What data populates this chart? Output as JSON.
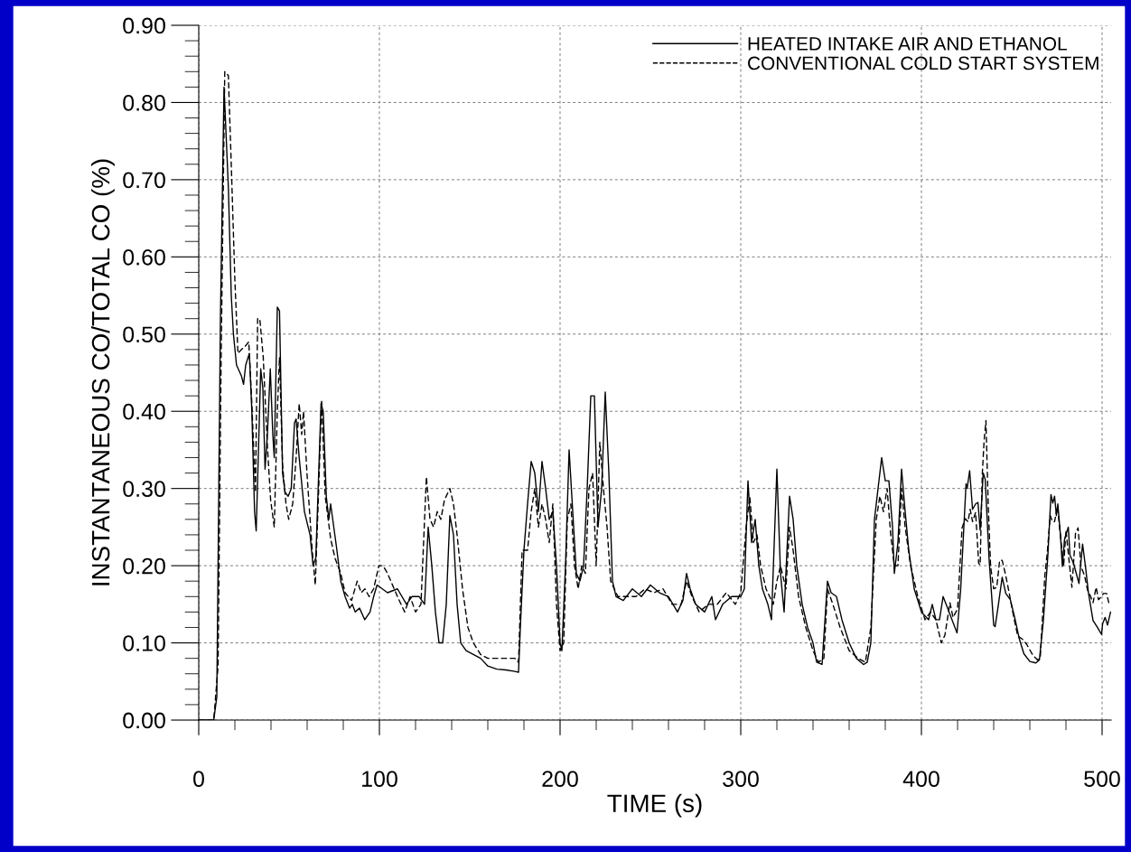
{
  "chart_data": {
    "type": "line",
    "xlabel": "TIME (s)",
    "ylabel": "INSTANTANEOUS CO/TOTAL CO (%)",
    "xlim": [
      0,
      505
    ],
    "ylim": [
      0,
      0.9
    ],
    "xticks": [
      0,
      {
        "value": 20,
        "label": null
      },
      {
        "value": 40,
        "label": null
      },
      {
        "value": 60,
        "label": null
      },
      {
        "value": 80,
        "label": null
      },
      100,
      {
        "value": 120,
        "label": null
      },
      {
        "value": 140,
        "label": null
      },
      {
        "value": 160,
        "label": null
      },
      {
        "value": 180,
        "label": null
      },
      200,
      {
        "value": 220,
        "label": null
      },
      {
        "value": 240,
        "label": null
      },
      {
        "value": 260,
        "label": null
      },
      {
        "value": 280,
        "label": null
      },
      300,
      {
        "value": 320,
        "label": null
      },
      {
        "value": 340,
        "label": null
      },
      {
        "value": 360,
        "label": null
      },
      {
        "value": 380,
        "label": null
      },
      400,
      {
        "value": 420,
        "label": null
      },
      {
        "value": 440,
        "label": null
      },
      {
        "value": 460,
        "label": null
      },
      {
        "value": 480,
        "label": null
      },
      500
    ],
    "yticks": [
      {
        "value": 0,
        "label": "0.00"
      },
      {
        "value": 0.02,
        "label": null
      },
      {
        "value": 0.04,
        "label": null
      },
      {
        "value": 0.06,
        "label": null
      },
      {
        "value": 0.08,
        "label": null
      },
      {
        "value": 0.1,
        "label": "0.10"
      },
      {
        "value": 0.12,
        "label": null
      },
      {
        "value": 0.14,
        "label": null
      },
      {
        "value": 0.16,
        "label": null
      },
      {
        "value": 0.18,
        "label": null
      },
      {
        "value": 0.2,
        "label": "0.20"
      },
      {
        "value": 0.22,
        "label": null
      },
      {
        "value": 0.24,
        "label": null
      },
      {
        "value": 0.26,
        "label": null
      },
      {
        "value": 0.28,
        "label": null
      },
      {
        "value": 0.3,
        "label": "0.30"
      },
      {
        "value": 0.32,
        "label": null
      },
      {
        "value": 0.34,
        "label": null
      },
      {
        "value": 0.36,
        "label": null
      },
      {
        "value": 0.38,
        "label": null
      },
      {
        "value": 0.4,
        "label": "0.40"
      },
      {
        "value": 0.42,
        "label": null
      },
      {
        "value": 0.44,
        "label": null
      },
      {
        "value": 0.46,
        "label": null
      },
      {
        "value": 0.48,
        "label": null
      },
      {
        "value": 0.5,
        "label": "0.50"
      },
      {
        "value": 0.52,
        "label": null
      },
      {
        "value": 0.54,
        "label": null
      },
      {
        "value": 0.56,
        "label": null
      },
      {
        "value": 0.58,
        "label": null
      },
      {
        "value": 0.6,
        "label": "0.60"
      },
      {
        "value": 0.62,
        "label": null
      },
      {
        "value": 0.64,
        "label": null
      },
      {
        "value": 0.66,
        "label": null
      },
      {
        "value": 0.68,
        "label": null
      },
      {
        "value": 0.7,
        "label": "0.70"
      },
      {
        "value": 0.72,
        "label": null
      },
      {
        "value": 0.74,
        "label": null
      },
      {
        "value": 0.76,
        "label": null
      },
      {
        "value": 0.78,
        "label": null
      },
      {
        "value": 0.8,
        "label": "0.80"
      },
      {
        "value": 0.82,
        "label": null
      },
      {
        "value": 0.84,
        "label": null
      },
      {
        "value": 0.86,
        "label": null
      },
      {
        "value": 0.88,
        "label": null
      },
      {
        "value": 0.9,
        "label": "0.90"
      }
    ],
    "grid": true,
    "legend": "top right",
    "marker": "none",
    "series": [
      {
        "name": "HEATED INTAKE AIR AND ETHANOL",
        "color": "#000000",
        "line_style": "solid",
        "x": [
          0,
          8.3,
          10,
          12,
          14,
          16.4,
          18,
          19.2,
          20.9,
          23.6,
          24.8,
          26,
          28,
          29.4,
          30.9,
          31.8,
          33.3,
          34.3,
          35.5,
          36.7,
          38,
          39.6,
          41,
          41.8,
          43.5,
          44.7,
          46.4,
          47.8,
          49.5,
          51.2,
          53,
          53.9,
          55.6,
          58.5,
          61.6,
          63.3,
          64.8,
          67.7,
          68.9,
          70.6,
          72,
          73,
          76.2,
          78.6,
          81,
          83.5,
          85,
          86.6,
          89,
          91.9,
          94.8,
          96.8,
          98.7,
          101.6,
          104.5,
          110,
          115,
          118,
          122,
          125,
          127,
          129,
          131,
          133,
          135,
          137,
          139,
          141,
          143,
          145,
          148,
          152,
          156,
          160,
          165,
          170,
          175,
          177,
          178,
          180,
          182,
          184,
          186,
          188,
          190,
          192,
          194,
          196,
          198,
          200,
          201,
          203,
          205,
          207,
          209,
          211,
          213,
          215,
          217,
          219,
          221,
          223,
          225,
          227,
          229,
          231,
          235,
          240,
          245,
          250,
          255,
          260,
          265,
          268,
          270,
          272,
          275,
          280,
          284,
          286,
          290,
          295,
          300,
          302,
          304,
          306,
          308,
          310,
          312,
          315,
          317,
          320,
          322,
          324,
          327,
          329,
          331,
          334,
          337,
          340,
          342,
          345,
          348,
          350,
          353,
          356,
          360,
          364,
          368,
          370,
          372,
          374,
          376,
          378,
          380,
          382,
          384,
          385,
          387,
          389,
          391,
          393,
          396,
          400,
          404,
          406,
          408,
          410,
          412,
          415,
          419.7,
          421.7,
          424.7,
          425.3,
          426.7,
          428.3,
          430,
          431.3,
          432.5,
          434.2,
          435.3,
          437.5,
          440,
          440.8,
          442.5,
          444.7,
          446.7,
          449.2,
          452,
          454.2,
          456.7,
          460,
          463.3,
          465.3,
          467.5,
          470,
          471.7,
          472.7,
          473.7,
          474.7,
          475.5,
          477,
          478,
          479.2,
          481.3,
          482.2,
          484.2,
          487.2,
          489.2,
          490.8,
          492.5,
          495,
          497.2,
          499.7,
          500.3,
          501.7,
          503,
          504.7
        ],
        "values": [
          0,
          0,
          0.03,
          0.52,
          0.82,
          0.69,
          0.55,
          0.5,
          0.46,
          0.446,
          0.435,
          0.46,
          0.475,
          0.4,
          0.27,
          0.245,
          0.37,
          0.455,
          0.43,
          0.325,
          0.37,
          0.455,
          0.37,
          0.34,
          0.535,
          0.53,
          0.32,
          0.295,
          0.29,
          0.3,
          0.385,
          0.39,
          0.34,
          0.27,
          0.24,
          0.2,
          0.21,
          0.41,
          0.4,
          0.29,
          0.26,
          0.28,
          0.225,
          0.18,
          0.16,
          0.145,
          0.15,
          0.14,
          0.145,
          0.13,
          0.14,
          0.16,
          0.175,
          0.17,
          0.165,
          0.17,
          0.15,
          0.16,
          0.16,
          0.15,
          0.25,
          0.2,
          0.14,
          0.1,
          0.1,
          0.15,
          0.265,
          0.24,
          0.15,
          0.1,
          0.09,
          0.085,
          0.08,
          0.07,
          0.066,
          0.065,
          0.063,
          0.062,
          0.12,
          0.22,
          0.28,
          0.335,
          0.32,
          0.27,
          0.335,
          0.3,
          0.26,
          0.27,
          0.2,
          0.1,
          0.09,
          0.2,
          0.35,
          0.27,
          0.19,
          0.18,
          0.2,
          0.3,
          0.42,
          0.42,
          0.25,
          0.3,
          0.425,
          0.32,
          0.18,
          0.16,
          0.155,
          0.17,
          0.16,
          0.175,
          0.165,
          0.16,
          0.14,
          0.155,
          0.19,
          0.17,
          0.15,
          0.14,
          0.16,
          0.13,
          0.15,
          0.16,
          0.16,
          0.17,
          0.31,
          0.23,
          0.26,
          0.2,
          0.17,
          0.15,
          0.13,
          0.325,
          0.19,
          0.14,
          0.29,
          0.26,
          0.2,
          0.15,
          0.12,
          0.1,
          0.075,
          0.072,
          0.18,
          0.165,
          0.16,
          0.13,
          0.1,
          0.08,
          0.072,
          0.075,
          0.1,
          0.26,
          0.3,
          0.34,
          0.31,
          0.31,
          0.25,
          0.19,
          0.23,
          0.325,
          0.27,
          0.22,
          0.17,
          0.14,
          0.13,
          0.15,
          0.13,
          0.13,
          0.16,
          0.142,
          0.113,
          0.168,
          0.306,
          0.3,
          0.323,
          0.273,
          0.28,
          0.282,
          0.246,
          0.32,
          0.312,
          0.207,
          0.123,
          0.121,
          0.148,
          0.185,
          0.164,
          0.156,
          0.129,
          0.105,
          0.086,
          0.076,
          0.074,
          0.078,
          0.129,
          0.214,
          0.292,
          0.281,
          0.29,
          0.265,
          0.28,
          0.238,
          0.199,
          0.234,
          0.25,
          0.214,
          0.203,
          0.177,
          0.228,
          0.199,
          0.164,
          0.129,
          0.121,
          0.111,
          0.125,
          0.133,
          0.123,
          0.14
        ]
      },
      {
        "name": "CONVENTIONAL COLD START SYSTEM",
        "color": "#000000",
        "line_style": "dashed",
        "x": [
          0,
          8.3,
          10.7,
          12.4,
          14.4,
          16.4,
          18,
          20,
          21.7,
          23.6,
          26,
          27.7,
          29.4,
          31.4,
          32.6,
          33.8,
          35.7,
          38,
          39.8,
          41.8,
          43.5,
          44.7,
          46.4,
          48.3,
          49.8,
          52,
          53.9,
          55.6,
          57,
          58,
          59.9,
          62.8,
          64.5,
          66.4,
          68,
          70,
          73,
          75.4,
          78.6,
          81,
          84.6,
          87.7,
          89.9,
          92,
          94.3,
          96.8,
          99.7,
          102,
          104.5,
          110,
          114,
          117,
          120,
          123,
          126,
          128,
          130,
          132,
          134,
          136,
          139,
          141,
          143,
          146,
          149,
          152,
          156,
          160,
          166,
          170,
          175,
          177,
          179,
          182,
          184,
          186,
          188,
          190,
          192,
          194,
          196,
          198,
          200,
          202,
          204,
          206,
          208,
          210,
          212,
          214,
          216,
          218,
          220,
          222,
          224,
          226,
          228,
          232,
          237,
          242,
          247,
          252,
          257,
          262,
          267,
          270,
          273,
          277,
          282,
          287,
          292,
          297,
          300,
          303,
          305,
          307,
          309,
          311,
          314,
          318,
          320,
          322,
          325,
          327,
          329,
          332,
          336,
          340,
          343,
          346,
          348,
          351,
          355,
          360,
          365,
          369,
          372,
          375,
          377,
          379,
          381,
          383,
          385,
          387,
          389,
          391,
          394,
          398,
          402,
          405,
          408,
          411,
          413,
          415.8,
          417.5,
          420,
          422.5,
          424.2,
          425.8,
          427,
          428.3,
          430,
          431.7,
          432.5,
          433.7,
          434.7,
          435.7,
          437,
          438.3,
          440,
          441.7,
          443.3,
          444.7,
          446.7,
          448.3,
          450.8,
          453.3,
          455.8,
          458.3,
          461.7,
          464.2,
          465.8,
          468.3,
          469.7,
          471.3,
          472.5,
          473.7,
          475.3,
          477,
          478.7,
          480,
          481.7,
          483.3,
          485.3,
          486.7,
          488.3,
          490.3,
          492,
          493.7,
          495,
          496.7,
          498,
          499.7,
          500.8,
          502.5,
          503.7
        ],
        "values": [
          0,
          0,
          0.07,
          0.47,
          0.84,
          0.835,
          0.72,
          0.57,
          0.475,
          0.48,
          0.485,
          0.49,
          0.41,
          0.295,
          0.52,
          0.52,
          0.47,
          0.355,
          0.285,
          0.25,
          0.4,
          0.47,
          0.33,
          0.28,
          0.26,
          0.28,
          0.34,
          0.41,
          0.37,
          0.4,
          0.32,
          0.22,
          0.175,
          0.3,
          0.415,
          0.29,
          0.235,
          0.21,
          0.19,
          0.165,
          0.155,
          0.18,
          0.165,
          0.17,
          0.16,
          0.17,
          0.2,
          0.2,
          0.19,
          0.16,
          0.14,
          0.16,
          0.14,
          0.15,
          0.315,
          0.26,
          0.25,
          0.27,
          0.26,
          0.285,
          0.3,
          0.28,
          0.24,
          0.17,
          0.12,
          0.1,
          0.085,
          0.08,
          0.08,
          0.08,
          0.08,
          0.075,
          0.22,
          0.22,
          0.27,
          0.3,
          0.25,
          0.28,
          0.26,
          0.23,
          0.28,
          0.15,
          0.09,
          0.1,
          0.26,
          0.28,
          0.2,
          0.17,
          0.2,
          0.19,
          0.3,
          0.32,
          0.2,
          0.36,
          0.3,
          0.25,
          0.18,
          0.16,
          0.16,
          0.16,
          0.17,
          0.165,
          0.17,
          0.15,
          0.15,
          0.18,
          0.16,
          0.14,
          0.15,
          0.15,
          0.165,
          0.15,
          0.165,
          0.25,
          0.29,
          0.23,
          0.24,
          0.2,
          0.17,
          0.15,
          0.18,
          0.2,
          0.17,
          0.25,
          0.22,
          0.16,
          0.12,
          0.09,
          0.075,
          0.08,
          0.17,
          0.15,
          0.12,
          0.09,
          0.08,
          0.075,
          0.12,
          0.26,
          0.29,
          0.27,
          0.3,
          0.24,
          0.2,
          0.2,
          0.3,
          0.25,
          0.2,
          0.16,
          0.13,
          0.14,
          0.13,
          0.1,
          0.11,
          0.152,
          0.133,
          0.144,
          0.249,
          0.261,
          0.257,
          0.273,
          0.257,
          0.269,
          0.203,
          0.201,
          0.319,
          0.362,
          0.388,
          0.277,
          0.199,
          0.17,
          0.172,
          0.207,
          0.207,
          0.187,
          0.168,
          0.137,
          0.109,
          0.105,
          0.098,
          0.084,
          0.078,
          0.082,
          0.187,
          0.218,
          0.265,
          0.257,
          0.257,
          0.277,
          0.238,
          0.199,
          0.246,
          0.207,
          0.172,
          0.242,
          0.249,
          0.199,
          0.187,
          0.168,
          0.16,
          0.152,
          0.172,
          0.156,
          0.16,
          0.164,
          0.164,
          0.152
        ]
      }
    ]
  }
}
